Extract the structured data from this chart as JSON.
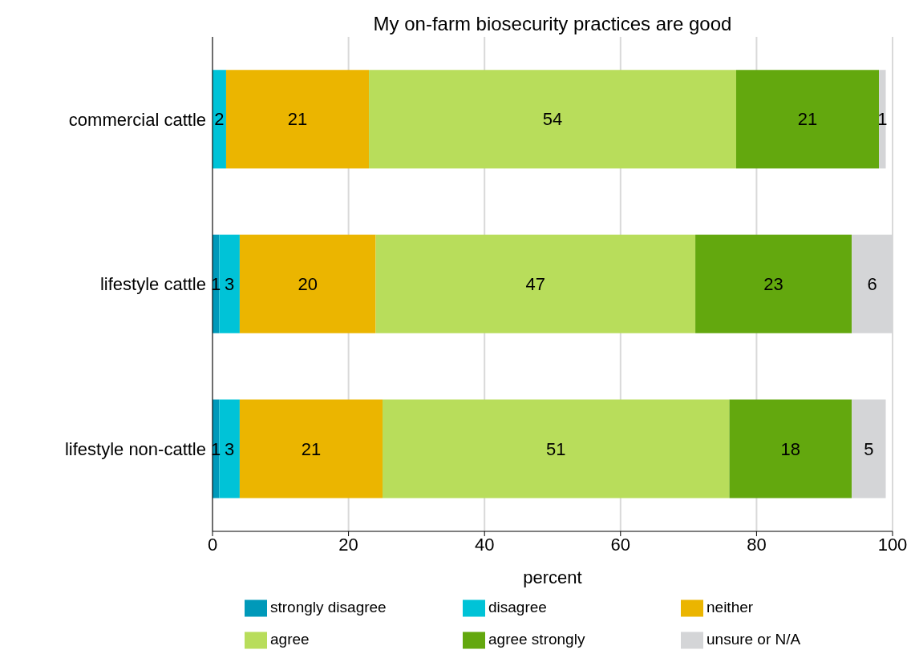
{
  "chart_data": {
    "type": "bar",
    "orientation": "horizontal",
    "stacked": true,
    "title": "My on-farm biosecurity practices are good",
    "xlabel": "percent",
    "categories": [
      "commercial cattle",
      "lifestyle cattle",
      "lifestyle non-cattle"
    ],
    "series": [
      {
        "name": "strongly disagree",
        "color": "#0099b9",
        "values": [
          null,
          1,
          1
        ]
      },
      {
        "name": "disagree",
        "color": "#00c3d7",
        "values": [
          2,
          3,
          3
        ]
      },
      {
        "name": "neither",
        "color": "#ebb500",
        "values": [
          21,
          20,
          21
        ]
      },
      {
        "name": "agree",
        "color": "#b8dd5b",
        "values": [
          54,
          47,
          51
        ]
      },
      {
        "name": "agree strongly",
        "color": "#63a80e",
        "values": [
          21,
          23,
          18
        ]
      },
      {
        "name": "unsure or N/A",
        "color": "#d4d5d7",
        "values": [
          1,
          6,
          5
        ]
      }
    ],
    "xlim": [
      0,
      100
    ],
    "xticks": [
      0,
      20,
      40,
      60,
      80,
      100
    ],
    "grid": "x",
    "legend": "bottom",
    "data_labels": true
  }
}
